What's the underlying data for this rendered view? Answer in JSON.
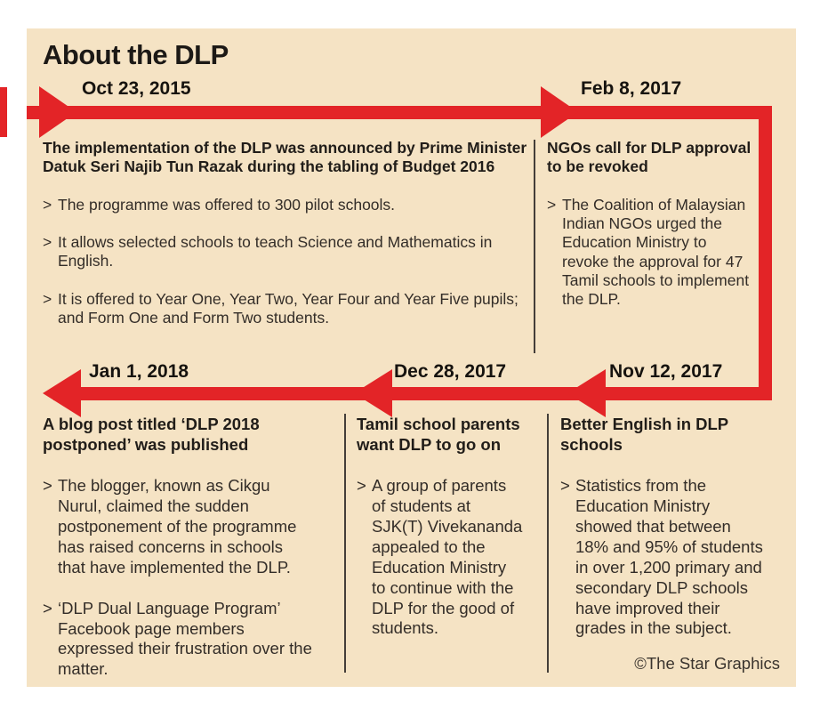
{
  "title": "About the DLP",
  "credit": "©The Star Graphics",
  "ui": {
    "bullet_marker": ">"
  },
  "colors": {
    "accent_red": "#e32427",
    "panel_bg": "#f5e3c4",
    "text": "#332d28",
    "heading": "#211d19",
    "divider": "#443e39"
  },
  "events": [
    {
      "date": "Oct 23, 2015",
      "heading": "The implementation of the DLP was announced by Prime Minister Datuk Seri Najib Tun Razak during the tabling of Budget 2016",
      "bullets": [
        "The programme was offered to 300 pilot schools.",
        "It allows selected schools to teach Science and Mathematics in English.",
        "It is offered to Year One, Year Two, Year Four and Year Five pupils; and Form One and Form Two students."
      ]
    },
    {
      "date": "Feb 8, 2017",
      "heading": "NGOs call for DLP approval to be revoked",
      "bullets": [
        "The Coalition of Malaysian Indian NGOs urged the Education Ministry to revoke the approval for 47 Tamil schools to implement the DLP."
      ]
    },
    {
      "date": "Jan 1, 2018",
      "heading": "A blog post titled ‘DLP 2018 postponed’ was published",
      "bullets": [
        "The blogger, known as Cikgu Nurul, claimed the sudden postponement of the programme has raised concerns in schools that have implemented the DLP.",
        "‘DLP Dual Language Program’ Facebook page members expressed their frustration over the matter."
      ]
    },
    {
      "date": "Dec 28, 2017",
      "heading": "Tamil school parents want DLP to go on",
      "bullets": [
        "A group of parents of students at SJK(T) Vivekananda appealed to the Education Ministry to continue with the DLP for the good of students."
      ]
    },
    {
      "date": "Nov 12, 2017",
      "heading": "Better English in DLP schools",
      "bullets": [
        "Statistics from the Education Ministry showed that between 18% and 95% of students in over 1,200 primary and secondary DLP schools have improved their grades in the subject."
      ]
    }
  ]
}
